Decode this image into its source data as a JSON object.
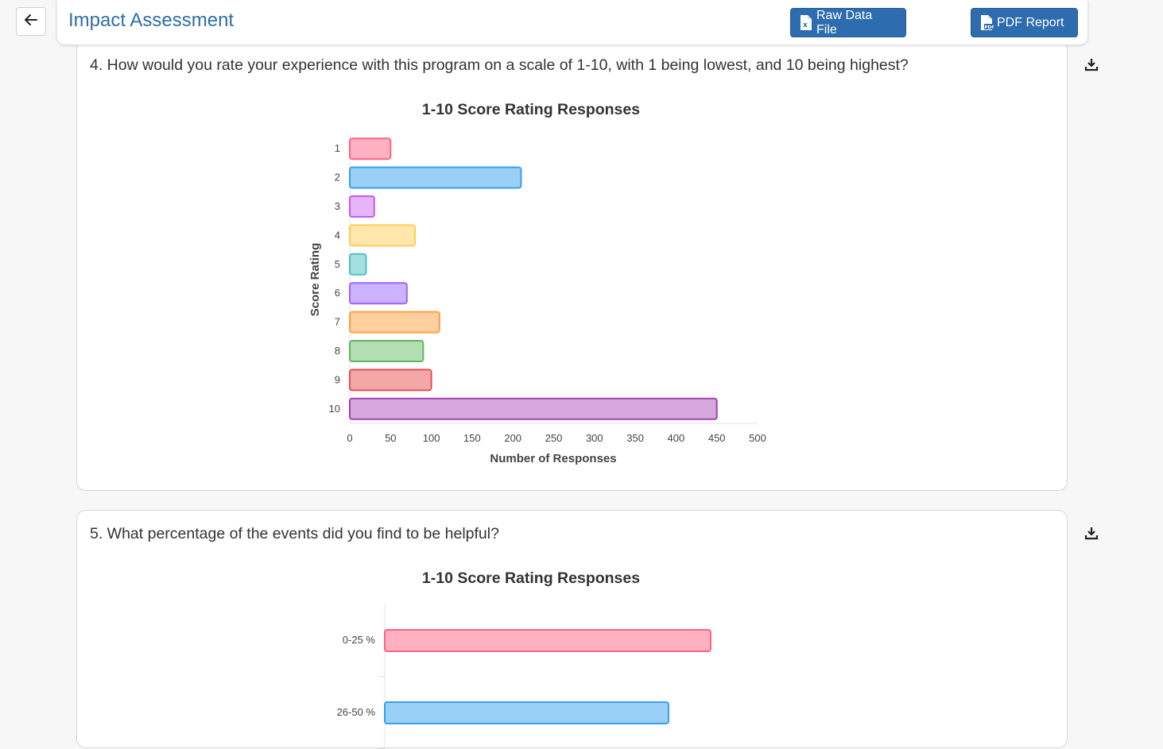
{
  "header": {
    "title": "Impact Assessment",
    "raw_data_label": "Raw Data File",
    "pdf_report_label": "PDF Report",
    "back_icon": "arrow-left-icon",
    "accent_color": "#2d6cae"
  },
  "questions": [
    {
      "text": "4. How would you rate your experience with this program on a scale of 1-10, with 1 being lowest, and 10 being highest?",
      "download_icon": "download-icon"
    },
    {
      "text": "5. What percentage of the events did you find to be helpful?",
      "download_icon": "download-icon"
    }
  ],
  "chart_data": [
    {
      "type": "bar",
      "orientation": "horizontal",
      "title": "1-10 Score Rating Responses",
      "xlabel": "Number of Responses",
      "ylabel": "Score Rating",
      "categories": [
        "1",
        "2",
        "3",
        "4",
        "5",
        "6",
        "7",
        "8",
        "9",
        "10"
      ],
      "values": [
        50,
        210,
        30,
        80,
        20,
        70,
        110,
        90,
        100,
        450
      ],
      "xlim": [
        0,
        500
      ],
      "xticks": [
        "0",
        "50",
        "100",
        "150",
        "200",
        "250",
        "300",
        "350",
        "400",
        "450",
        "500"
      ],
      "colors": [
        {
          "fill": "#ffb1c1",
          "stroke": "#ff6384"
        },
        {
          "fill": "#9ad0f5",
          "stroke": "#36a2eb"
        },
        {
          "fill": "#e8b4f8",
          "stroke": "#c45ae6"
        },
        {
          "fill": "#ffe6aa",
          "stroke": "#ffcd56"
        },
        {
          "fill": "#a5dfdf",
          "stroke": "#4bc0c0"
        },
        {
          "fill": "#ccb2ff",
          "stroke": "#9966ff"
        },
        {
          "fill": "#ffcf9f",
          "stroke": "#ff9f40"
        },
        {
          "fill": "#b3ddb3",
          "stroke": "#5cb85c"
        },
        {
          "fill": "#f4a7a7",
          "stroke": "#e05252"
        },
        {
          "fill": "#d6a8dd",
          "stroke": "#a33fb5"
        }
      ],
      "grid": false,
      "legend": "none"
    },
    {
      "type": "bar",
      "orientation": "horizontal",
      "title": "1-10 Score Rating Responses",
      "xlabel": "",
      "ylabel": "",
      "categories": [
        "0-25 %",
        "26-50 %"
      ],
      "values": [
        410,
        357
      ],
      "colors": [
        {
          "fill": "#ffb1c1",
          "stroke": "#ff6384"
        },
        {
          "fill": "#9ad0f5",
          "stroke": "#36a2eb"
        }
      ],
      "grid": false,
      "legend": "none"
    }
  ]
}
